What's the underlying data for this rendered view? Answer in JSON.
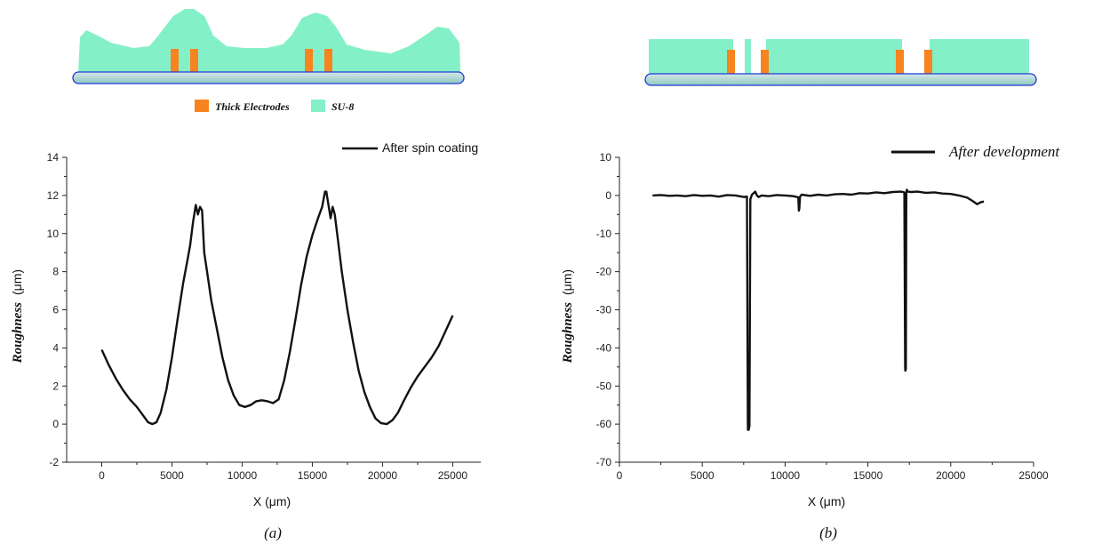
{
  "colors": {
    "su8": "#84f0c8",
    "electrode": "#f7841f",
    "substrate_stroke": "#1f3bd6",
    "line": "#111111"
  },
  "schematic": {
    "legend": [
      {
        "label": "Thick Electrodes",
        "color": "#f7841f"
      },
      {
        "label": "SU-8",
        "color": "#84f0c8"
      }
    ]
  },
  "chart_data": [
    {
      "type": "line",
      "panel_label": "(a)",
      "xlabel": "X (μm)",
      "ylabel": "Roughness",
      "ylabel_unit": "(μm)",
      "xlim": [
        -2500,
        27000
      ],
      "ylim": [
        -2,
        14
      ],
      "x_ticks": [
        0,
        5000,
        10000,
        15000,
        20000,
        25000
      ],
      "y_ticks": [
        -2,
        0,
        2,
        4,
        6,
        8,
        10,
        12,
        14
      ],
      "legend_position": "top-right",
      "series": [
        {
          "name": "After spin coating",
          "x": [
            0,
            500,
            1000,
            1500,
            2000,
            2500,
            3000,
            3300,
            3600,
            3900,
            4200,
            4600,
            5000,
            5400,
            5800,
            6100,
            6300,
            6500,
            6700,
            6850,
            7000,
            7150,
            7300,
            7500,
            7800,
            8200,
            8600,
            9000,
            9400,
            9800,
            10200,
            10600,
            11000,
            11400,
            11800,
            12200,
            12600,
            13000,
            13400,
            13800,
            14200,
            14600,
            15000,
            15400,
            15700,
            15900,
            16000,
            16150,
            16300,
            16450,
            16600,
            16800,
            17100,
            17500,
            17900,
            18300,
            18700,
            19100,
            19500,
            19900,
            20300,
            20700,
            21100,
            21500,
            22000,
            22500,
            23000,
            23500,
            24000,
            24500,
            25000
          ],
          "values": [
            3.9,
            3.1,
            2.4,
            1.8,
            1.3,
            0.9,
            0.4,
            0.1,
            0.0,
            0.1,
            0.6,
            1.8,
            3.5,
            5.5,
            7.4,
            8.6,
            9.4,
            10.6,
            11.5,
            11.0,
            11.4,
            11.2,
            9.0,
            8.0,
            6.5,
            5.0,
            3.5,
            2.3,
            1.5,
            1.0,
            0.9,
            1.0,
            1.2,
            1.25,
            1.2,
            1.1,
            1.3,
            2.3,
            3.8,
            5.5,
            7.3,
            8.8,
            9.9,
            10.8,
            11.4,
            12.2,
            12.2,
            11.5,
            10.8,
            11.4,
            11.0,
            9.8,
            8.0,
            6.0,
            4.3,
            2.8,
            1.7,
            0.9,
            0.3,
            0.05,
            0.0,
            0.2,
            0.6,
            1.2,
            1.9,
            2.5,
            3.0,
            3.5,
            4.1,
            4.9,
            5.7
          ]
        }
      ]
    },
    {
      "type": "line",
      "panel_label": "(b)",
      "xlabel": "X (μm)",
      "ylabel": "Roughness",
      "ylabel_unit": "(μm)",
      "xlim": [
        0,
        25000
      ],
      "ylim": [
        -70,
        10
      ],
      "x_ticks": [
        0,
        5000,
        10000,
        15000,
        20000,
        25000
      ],
      "y_ticks": [
        -70,
        -60,
        -50,
        -40,
        -30,
        -20,
        -10,
        0,
        10
      ],
      "legend_position": "top-right",
      "series": [
        {
          "name": "After development",
          "x": [
            2000,
            2500,
            3000,
            3500,
            4000,
            4500,
            5000,
            5500,
            6000,
            6500,
            7000,
            7500,
            7700,
            7750,
            7760,
            7800,
            7850,
            7900,
            8000,
            8200,
            8300,
            8400,
            8600,
            9000,
            9500,
            10000,
            10500,
            10800,
            10830,
            10860,
            10900,
            11000,
            11500,
            12000,
            12500,
            13000,
            13500,
            14000,
            14500,
            15000,
            15500,
            16000,
            16500,
            17000,
            17200,
            17250,
            17260,
            17290,
            17320,
            17350,
            17400,
            17600,
            18000,
            18500,
            19000,
            19500,
            20000,
            20500,
            21000,
            21300,
            21600,
            21800,
            22000
          ],
          "values": [
            0.0,
            0.1,
            -0.1,
            0.0,
            -0.2,
            0.1,
            -0.1,
            0.0,
            -0.3,
            0.1,
            0.0,
            -0.4,
            -0.3,
            -60.0,
            -61.5,
            -61.5,
            -60.5,
            -1.0,
            0.2,
            1.0,
            0.0,
            -0.4,
            0.0,
            -0.2,
            0.1,
            0.0,
            -0.2,
            -0.5,
            -4.0,
            -3.5,
            -0.3,
            0.2,
            -0.1,
            0.2,
            0.0,
            0.3,
            0.4,
            0.2,
            0.6,
            0.5,
            0.8,
            0.6,
            0.9,
            1.0,
            0.8,
            -45.0,
            -46.0,
            -45.5,
            0.5,
            1.5,
            1.0,
            0.9,
            1.0,
            0.7,
            0.8,
            0.5,
            0.4,
            0.0,
            -0.6,
            -1.4,
            -2.3,
            -1.8,
            -1.6
          ]
        }
      ]
    }
  ]
}
